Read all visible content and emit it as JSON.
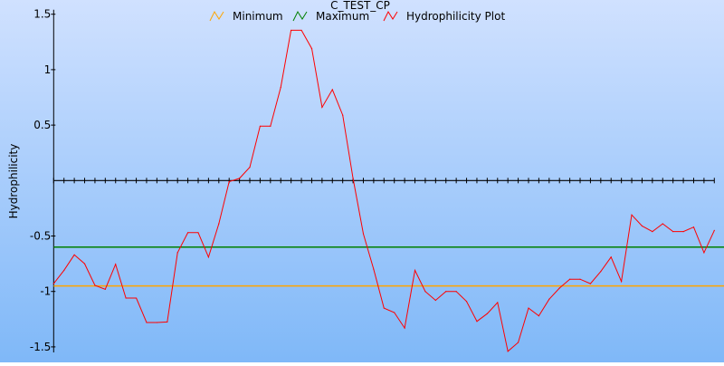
{
  "chart_data": {
    "type": "line",
    "title": "C_TEST_CP",
    "xlabel": "",
    "ylabel": "Hydrophilicity",
    "ylim": [
      -1.55,
      1.54
    ],
    "xlim": [
      0,
      64
    ],
    "yticks": [
      1.5,
      1,
      0.5,
      -0.5,
      -1,
      -1.5
    ],
    "ytick_labels": [
      "1.5",
      "1",
      "0.5",
      "-0.5",
      "-1",
      "-1.5"
    ],
    "grid": false,
    "legend_position": "top",
    "x_axis_at_zero": true,
    "series": [
      {
        "name": "Minimum",
        "color": "#ffa500",
        "constant": -0.95
      },
      {
        "name": "Maximum",
        "color": "#008000",
        "constant": -0.6
      },
      {
        "name": "Hydrophilicity Plot",
        "color": "#ff0000",
        "values": [
          -0.93,
          -0.81,
          -0.67,
          -0.75,
          -0.945,
          -0.98,
          -0.755,
          -1.06,
          -1.06,
          -1.28,
          -1.28,
          -1.275,
          -0.65,
          -0.47,
          -0.47,
          -0.69,
          -0.39,
          -0.01,
          0.02,
          0.12,
          0.49,
          0.49,
          0.84,
          1.355,
          1.355,
          1.19,
          0.66,
          0.82,
          0.59,
          0.02,
          -0.48,
          -0.8,
          -1.15,
          -1.19,
          -1.33,
          -0.81,
          -1.0,
          -1.08,
          -1.0,
          -1.0,
          -1.09,
          -1.27,
          -1.2,
          -1.1,
          -1.54,
          -1.46,
          -1.15,
          -1.22,
          -1.07,
          -0.97,
          -0.89,
          -0.89,
          -0.93,
          -0.82,
          -0.69,
          -0.91,
          -0.31,
          -0.41,
          -0.46,
          -0.39,
          -0.46,
          -0.46,
          -0.42,
          -0.65,
          -0.45
        ]
      }
    ]
  }
}
